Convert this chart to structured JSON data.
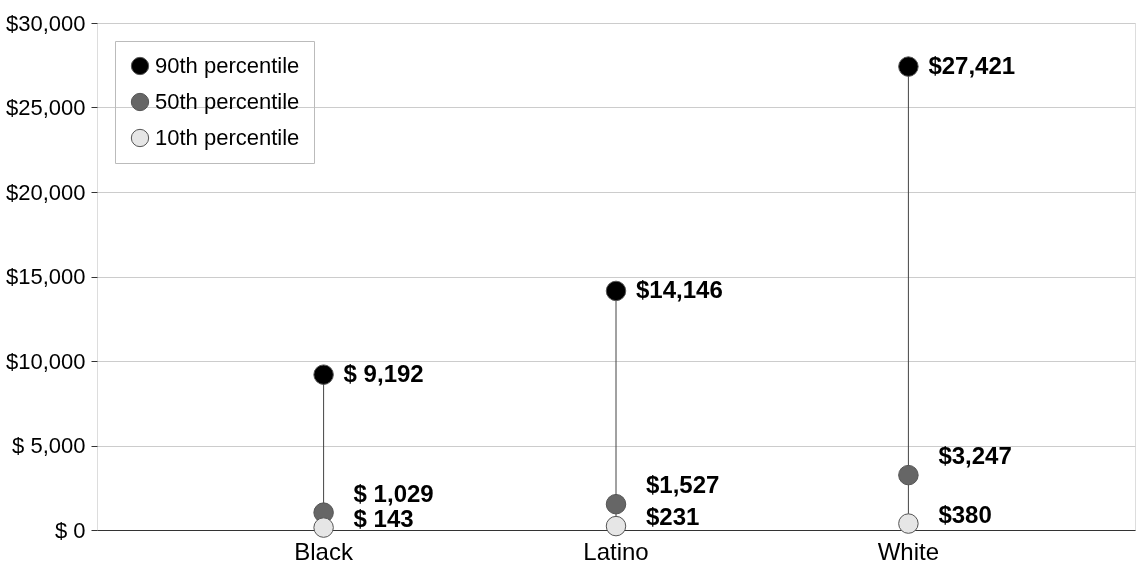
{
  "chart_data": {
    "type": "scatter",
    "categories": [
      "Black",
      "Latino",
      "White"
    ],
    "series": [
      {
        "name": "90th percentile",
        "color": "#000000",
        "values": [
          9192,
          14146,
          27421
        ],
        "value_labels": [
          "$ 9,192",
          "$14,146",
          "$27,421"
        ]
      },
      {
        "name": "50th percentile",
        "color": "#666666",
        "values": [
          1029,
          1527,
          3247
        ],
        "value_labels": [
          "$ 1,029",
          "$1,527",
          "$3,247"
        ]
      },
      {
        "name": "10th percentile",
        "color": "#e6e6e6",
        "values": [
          143,
          231,
          380
        ],
        "value_labels": [
          "$ 143",
          "$231",
          "$380"
        ]
      }
    ],
    "ylim": [
      0,
      30000
    ],
    "yticks": [
      {
        "value": 0,
        "label": "$ 0"
      },
      {
        "value": 5000,
        "label": "$ 5,000"
      },
      {
        "value": 10000,
        "label": "$10,000"
      },
      {
        "value": 15000,
        "label": "$15,000"
      },
      {
        "value": 20000,
        "label": "$20,000"
      },
      {
        "value": 25000,
        "label": "$25,000"
      },
      {
        "value": 30000,
        "label": "$30,000"
      }
    ],
    "grid": "y",
    "legend": "top left",
    "marker": "circle"
  }
}
